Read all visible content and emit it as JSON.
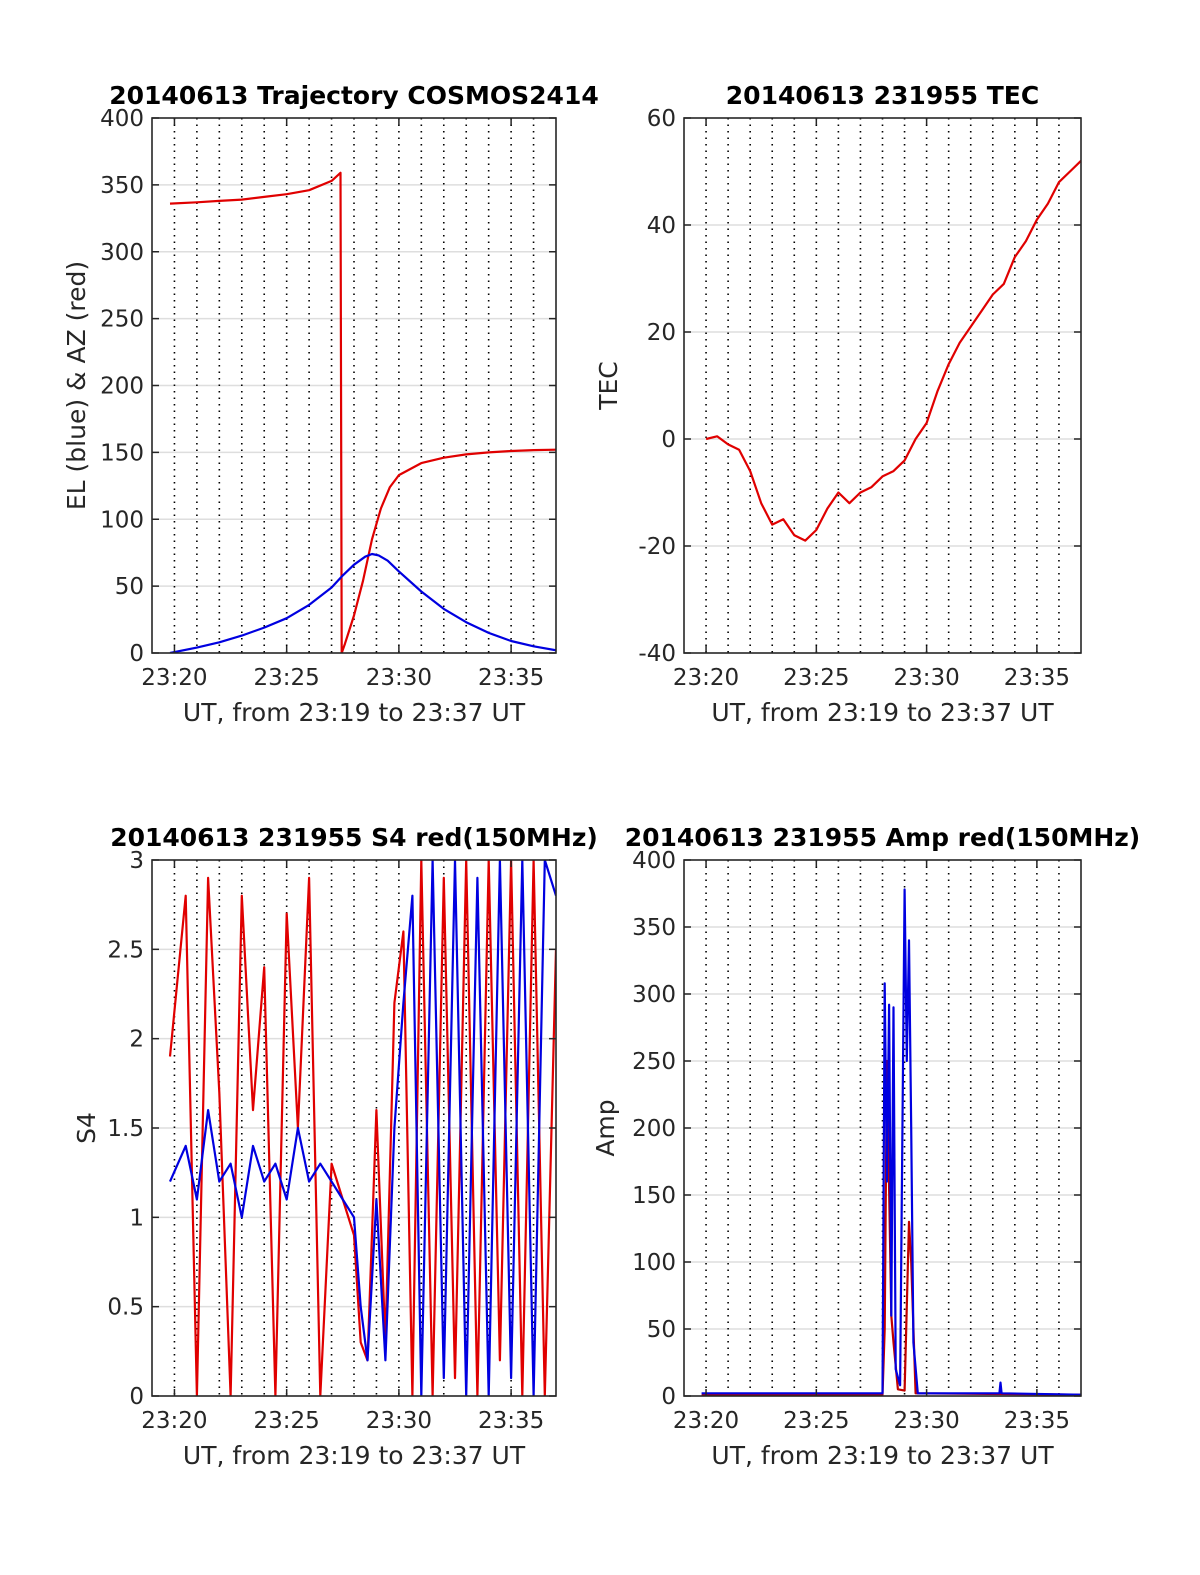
{
  "chart_data": [
    {
      "type": "line",
      "title": "20140613 Trajectory COSMOS2414",
      "xlabel": "UT, from 23:19 to 23:37 UT",
      "ylabel": "EL (blue) & AZ (red)",
      "xlim": [
        "23:19",
        "23:37"
      ],
      "ylim": [
        0,
        400
      ],
      "xticks": [
        "23:20",
        "23:25",
        "23:30",
        "23:35"
      ],
      "yticks": [
        0,
        50,
        100,
        150,
        200,
        250,
        300,
        350,
        400
      ],
      "grid": true,
      "series": [
        {
          "color": "#e00000",
          "x": [
            "23:19.8",
            "23:21",
            "23:22",
            "23:23",
            "23:24",
            "23:25",
            "23:26",
            "23:27",
            "23:27.4",
            "23:27.45",
            "23:27.6",
            "23:28",
            "23:28.4",
            "23:28.8",
            "23:29.2",
            "23:29.6",
            "23:30",
            "23:31",
            "23:32",
            "23:33",
            "23:34",
            "23:35",
            "23:36",
            "23:37"
          ],
          "values": [
            336,
            337,
            338,
            339,
            341,
            343,
            346,
            353,
            359,
            0,
            7,
            28,
            54,
            85,
            108,
            124,
            133,
            142,
            146,
            148.5,
            150,
            151,
            151.7,
            152
          ]
        },
        {
          "color": "#0000e0",
          "x": [
            "23:19.8",
            "23:21",
            "23:22",
            "23:23",
            "23:24",
            "23:25",
            "23:26",
            "23:27",
            "23:27.5",
            "23:28",
            "23:28.5",
            "23:28.8",
            "23:29.1",
            "23:29.5",
            "23:30",
            "23:31",
            "23:32",
            "23:33",
            "23:34",
            "23:35",
            "23:36",
            "23:37"
          ],
          "values": [
            0,
            4,
            8,
            13,
            19,
            26,
            36,
            49,
            58,
            66,
            72,
            74,
            73,
            69,
            61,
            46,
            33,
            23,
            15,
            9,
            5,
            2
          ]
        }
      ]
    },
    {
      "type": "line",
      "title": "20140613 231955 TEC",
      "xlabel": "UT, from 23:19 to 23:37 UT",
      "ylabel": "TEC",
      "xlim": [
        "23:19",
        "23:37"
      ],
      "ylim": [
        -40,
        60
      ],
      "xticks": [
        "23:20",
        "23:25",
        "23:30",
        "23:35"
      ],
      "yticks": [
        -40,
        -20,
        0,
        20,
        40,
        60
      ],
      "grid": true,
      "series": [
        {
          "color": "#e00000",
          "x": [
            "23:20",
            "23:20.5",
            "23:21",
            "23:21.5",
            "23:22",
            "23:22.5",
            "23:23",
            "23:23.5",
            "23:24",
            "23:24.5",
            "23:25",
            "23:25.5",
            "23:26",
            "23:26.5",
            "23:27",
            "23:27.5",
            "23:28",
            "23:28.5",
            "23:29",
            "23:29.5",
            "23:30",
            "23:30.5",
            "23:31",
            "23:31.5",
            "23:32",
            "23:32.5",
            "23:33",
            "23:33.5",
            "23:34",
            "23:34.5",
            "23:35",
            "23:35.5",
            "23:36",
            "23:36.5",
            "23:37"
          ],
          "values": [
            0,
            0.5,
            -1,
            -2,
            -6,
            -12,
            -16,
            -15,
            -18,
            -19,
            -17,
            -13,
            -10,
            -12,
            -10,
            -9,
            -7,
            -6,
            -4,
            0,
            3,
            9,
            14,
            18,
            21,
            24,
            27,
            29,
            34,
            37,
            41,
            44,
            48,
            50,
            52
          ]
        }
      ]
    },
    {
      "type": "line",
      "title": "20140613 231955 S4 red(150MHz)",
      "xlabel": "UT, from 23:19 to 23:37 UT",
      "ylabel": "S4",
      "xlim": [
        "23:19",
        "23:37"
      ],
      "ylim": [
        0,
        3
      ],
      "xticks": [
        "23:20",
        "23:25",
        "23:30",
        "23:35"
      ],
      "yticks": [
        0,
        0.5,
        1,
        1.5,
        2,
        2.5,
        3
      ],
      "grid": true,
      "series": [
        {
          "color": "#e00000",
          "x": [
            "23:19.8",
            "23:20.5",
            "23:21",
            "23:21.5",
            "23:22",
            "23:22.5",
            "23:23",
            "23:23.5",
            "23:24",
            "23:24.5",
            "23:25",
            "23:25.5",
            "23:26",
            "23:26.5",
            "23:27",
            "23:27.5",
            "23:28",
            "23:28.3",
            "23:28.6",
            "23:29",
            "23:29.4",
            "23:29.8",
            "23:30.2",
            "23:30.6",
            "23:31",
            "23:31.5",
            "23:32",
            "23:32.5",
            "23:33",
            "23:33.5",
            "23:34",
            "23:34.5",
            "23:35",
            "23:35.5",
            "23:36",
            "23:36.5",
            "23:37"
          ],
          "values": [
            1.9,
            2.8,
            0.0,
            2.9,
            1.7,
            0.0,
            2.8,
            1.6,
            2.4,
            0.0,
            2.7,
            1.5,
            2.9,
            0.0,
            1.3,
            1.1,
            0.9,
            0.3,
            0.2,
            1.6,
            0.3,
            2.2,
            2.6,
            0.0,
            3.0,
            0.0,
            2.9,
            0.1,
            3.0,
            0.0,
            3.0,
            0.2,
            3.0,
            0.0,
            3.0,
            0.0,
            2.5
          ]
        },
        {
          "color": "#0000e0",
          "x": [
            "23:19.8",
            "23:20.5",
            "23:21",
            "23:21.5",
            "23:22",
            "23:22.5",
            "23:23",
            "23:23.5",
            "23:24",
            "23:24.5",
            "23:25",
            "23:25.5",
            "23:26",
            "23:26.5",
            "23:27",
            "23:27.5",
            "23:28",
            "23:28.3",
            "23:28.6",
            "23:29",
            "23:29.4",
            "23:29.8",
            "23:30.2",
            "23:30.6",
            "23:31",
            "23:31.5",
            "23:32",
            "23:32.5",
            "23:33",
            "23:33.5",
            "23:34",
            "23:34.5",
            "23:35",
            "23:35.5",
            "23:36",
            "23:36.5",
            "23:37"
          ],
          "values": [
            1.2,
            1.4,
            1.1,
            1.6,
            1.2,
            1.3,
            1.0,
            1.4,
            1.2,
            1.3,
            1.1,
            1.5,
            1.2,
            1.3,
            1.2,
            1.1,
            1.0,
            0.5,
            0.2,
            1.1,
            0.2,
            1.5,
            2.2,
            2.8,
            0.0,
            3.0,
            0.1,
            3.0,
            0.0,
            2.9,
            0.0,
            3.0,
            0.1,
            3.0,
            0.0,
            3.0,
            2.8
          ]
        }
      ]
    },
    {
      "type": "line",
      "title": "20140613 231955 Amp red(150MHz)",
      "xlabel": "UT, from 23:19 to 23:37 UT",
      "ylabel": "Amp",
      "xlim": [
        "23:19",
        "23:37"
      ],
      "ylim": [
        0,
        400
      ],
      "xticks": [
        "23:20",
        "23:25",
        "23:30",
        "23:35"
      ],
      "yticks": [
        0,
        50,
        100,
        150,
        200,
        250,
        300,
        350,
        400
      ],
      "grid": true,
      "series": [
        {
          "color": "#c00000",
          "x": [
            "23:19.8",
            "23:28",
            "23:28.1",
            "23:28.2",
            "23:28.4",
            "23:28.5",
            "23:28.7",
            "23:29",
            "23:29.2",
            "23:29.3",
            "23:29.5",
            "23:37"
          ],
          "values": [
            1,
            1,
            50,
            250,
            60,
            40,
            5,
            4,
            130,
            100,
            2,
            1
          ]
        },
        {
          "color": "#0000e0",
          "x": [
            "23:19.8",
            "23:25",
            "23:28",
            "23:28.1",
            "23:28.2",
            "23:28.3",
            "23:28.4",
            "23:28.5",
            "23:28.6",
            "23:28.8",
            "23:29",
            "23:29.1",
            "23:29.2",
            "23:29.3",
            "23:29.4",
            "23:29.6",
            "23:33.3",
            "23:33.35",
            "23:33.4",
            "23:37"
          ],
          "values": [
            2,
            2,
            2,
            308,
            160,
            292,
            60,
            290,
            20,
            8,
            378,
            250,
            340,
            200,
            40,
            2,
            2,
            10,
            2,
            1
          ]
        }
      ]
    }
  ]
}
